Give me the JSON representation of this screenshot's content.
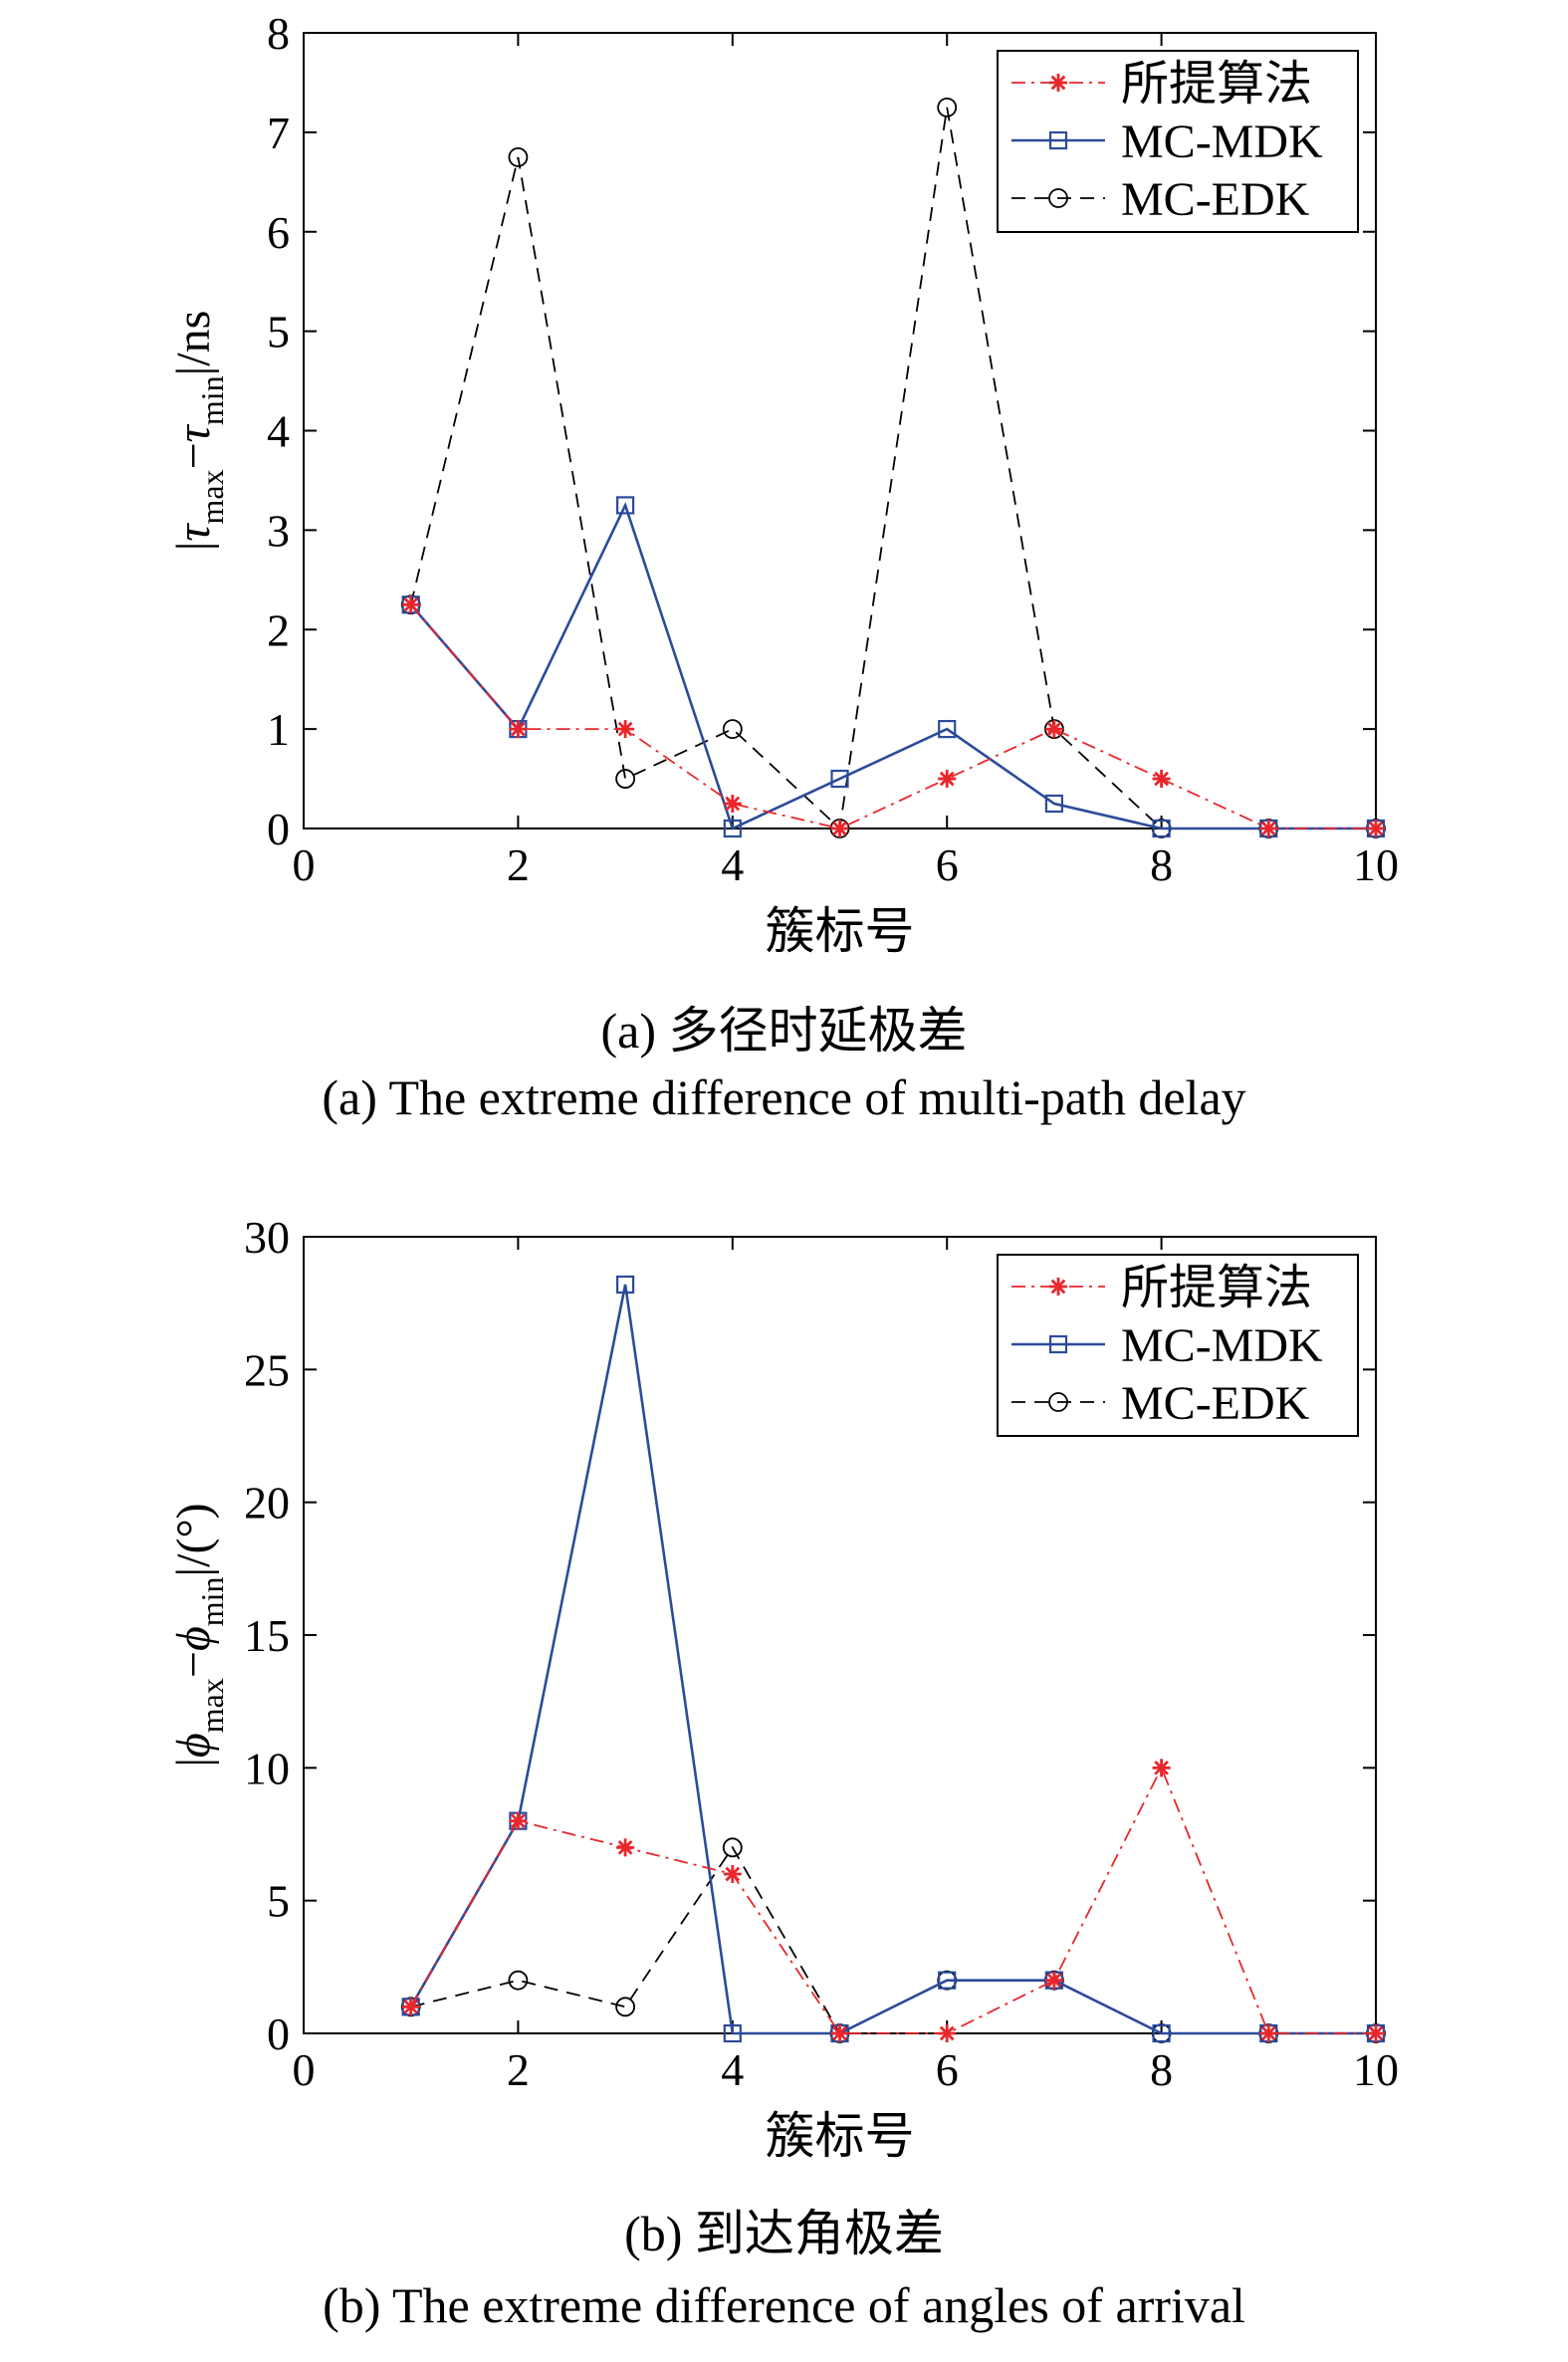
{
  "chart_data": [
    {
      "type": "line",
      "xlabel": "簇标号",
      "ylabel_parts": {
        "bar": "|",
        "sym": "τ",
        "sub_max": "max",
        "minus": "−",
        "sub_min": "min",
        "tail": "|/ns"
      },
      "xlim": [
        0,
        10
      ],
      "ylim": [
        0,
        8
      ],
      "xticks": [
        0,
        2,
        4,
        6,
        8,
        10
      ],
      "yticks": [
        0,
        1,
        2,
        3,
        4,
        5,
        6,
        7,
        8
      ],
      "x": [
        1,
        2,
        3,
        4,
        5,
        6,
        7,
        8,
        9,
        10
      ],
      "legend_position": "top-right",
      "series": [
        {
          "name": "所提算法",
          "values": [
            2.25,
            1,
            1,
            0.25,
            0,
            0.5,
            1,
            0.5,
            0,
            0
          ],
          "color": "#e8262b",
          "marker": "asterisk",
          "dash": "dashdot"
        },
        {
          "name": "MC-MDK",
          "values": [
            2.25,
            1,
            3.25,
            0,
            0.5,
            1,
            0.25,
            0,
            0,
            0
          ],
          "color": "#2b4b9b",
          "marker": "square",
          "dash": "solid"
        },
        {
          "name": "MC-EDK",
          "values": [
            2.25,
            6.75,
            0.5,
            1,
            0,
            7.25,
            1,
            0,
            0,
            0
          ],
          "color": "#000000",
          "marker": "circle",
          "dash": "dashed"
        }
      ],
      "caption_cn": "(a) 多径时延极差",
      "caption_en": "(a) The extreme difference of multi-path delay"
    },
    {
      "type": "line",
      "xlabel": "簇标号",
      "ylabel_parts": {
        "bar": "|",
        "sym": "ϕ",
        "sub_max": "max",
        "minus": "−",
        "sub_min": "min",
        "tail": "|/(°)"
      },
      "xlim": [
        0,
        10
      ],
      "ylim": [
        0,
        30
      ],
      "xticks": [
        0,
        2,
        4,
        6,
        8,
        10
      ],
      "yticks": [
        0,
        5,
        10,
        15,
        20,
        25,
        30
      ],
      "x": [
        1,
        2,
        3,
        4,
        5,
        6,
        7,
        8,
        9,
        10
      ],
      "legend_position": "top-right",
      "series": [
        {
          "name": "所提算法",
          "values": [
            1,
            8,
            7,
            6,
            0,
            0,
            2,
            10,
            0,
            0
          ],
          "color": "#e8262b",
          "marker": "asterisk",
          "dash": "dashdot"
        },
        {
          "name": "MC-MDK",
          "values": [
            1,
            8,
            28.2,
            0,
            0,
            2,
            2,
            0,
            0,
            0
          ],
          "color": "#2b4b9b",
          "marker": "square",
          "dash": "solid"
        },
        {
          "name": "MC-EDK",
          "values": [
            1,
            2,
            1,
            7,
            0,
            2,
            2,
            0,
            0,
            0
          ],
          "color": "#000000",
          "marker": "circle",
          "dash": "dashed"
        }
      ],
      "caption_cn": "(b) 到达角极差",
      "caption_en": "(b) The extreme difference of angles of arrival"
    }
  ]
}
